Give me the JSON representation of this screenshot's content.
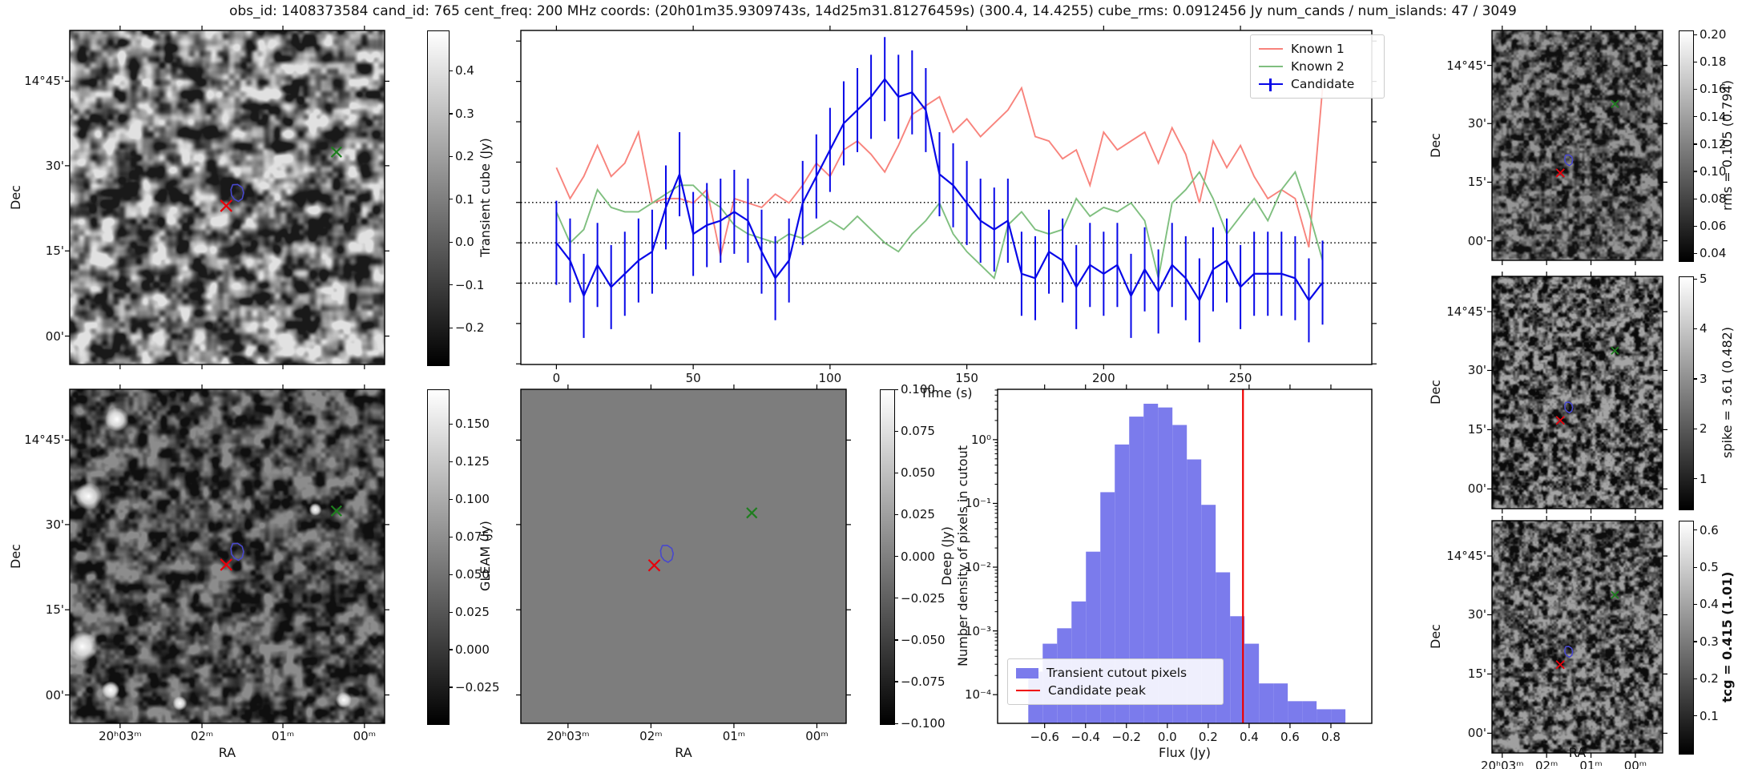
{
  "title": "obs_id: 1408373584 cand_id: 765 cent_freq: 200 MHz coords: (20h01m35.9309743s, 14d25m31.81276459s) (300.4, 14.4255) cube_rms: 0.0912456 Jy num_cands / num_islands: 47 / 3049",
  "colors": {
    "known1": "#f8837c",
    "known2": "#7fbf7f",
    "candidate": "#0707e8",
    "hist_bar": "#7b7bec",
    "candidate_peak_line": "#f00000",
    "marker_red": "#e8000b",
    "marker_green": "#1e7e1e",
    "contour_blue": "#4848cc",
    "dotted_line": "#000000"
  },
  "axes": {
    "dec_label": "Dec",
    "ra_label": "RA",
    "dec_ticks": [
      "14°45'",
      "30'",
      "15'",
      "00'"
    ],
    "ra_ticks": [
      "20ʰ03ᵐ",
      "02ᵐ",
      "01ᵐ",
      "00ᵐ"
    ]
  },
  "colorbars": {
    "transient": {
      "label": "Transient cube (Jy)",
      "vmin": -0.286,
      "vmax": 0.494,
      "ticks": [
        0.4,
        0.3,
        0.2,
        0.1,
        0.0,
        -0.1,
        -0.2
      ],
      "labels": [
        "0.4",
        "0.3",
        "0.2",
        "0.1",
        "0.0",
        "−0.1",
        "−0.2"
      ]
    },
    "gleam": {
      "label": "GLEAM (Jy)",
      "vmin": -0.049,
      "vmax": 0.173,
      "ticks": [
        0.15,
        0.125,
        0.1,
        0.075,
        0.05,
        0.025,
        0.0,
        -0.025
      ],
      "labels": [
        "0.150",
        "0.125",
        "0.100",
        "0.075",
        "0.050",
        "0.025",
        "0.000",
        "−0.025"
      ]
    },
    "deep": {
      "label": "Deep (Jy)",
      "vmin": -0.1,
      "vmax": 0.1,
      "ticks": [
        0.1,
        0.075,
        0.05,
        0.025,
        0.0,
        -0.025,
        -0.05,
        -0.075,
        -0.1
      ],
      "labels": [
        "0.100",
        "0.075",
        "0.050",
        "0.025",
        "0.000",
        "−0.025",
        "−0.050",
        "−0.075",
        "−0.100"
      ]
    },
    "rms": {
      "label": "rms = 0.105 (0.794)",
      "vmin": 0.035,
      "vmax": 0.203,
      "ticks": [
        0.2,
        0.18,
        0.16,
        0.14,
        0.12,
        0.1,
        0.08,
        0.06,
        0.04
      ],
      "labels": [
        "0.20",
        "0.18",
        "0.16",
        "0.14",
        "0.12",
        "0.10",
        "0.08",
        "0.06",
        "0.04"
      ]
    },
    "spike": {
      "label": "spike = 3.61 (0.482)",
      "vmin": 0.4,
      "vmax": 5.05,
      "ticks": [
        5,
        4,
        3,
        2,
        1
      ],
      "labels": [
        "5",
        "4",
        "3",
        "2",
        "1"
      ]
    },
    "tcg": {
      "label": "tcg = 0.415 (1.01)",
      "bold": true,
      "vmin": 0.0,
      "vmax": 0.625,
      "ticks": [
        0.6,
        0.5,
        0.4,
        0.3,
        0.2,
        0.1
      ],
      "labels": [
        "0.6",
        "0.5",
        "0.4",
        "0.3",
        "0.2",
        "0.1"
      ]
    }
  },
  "markers": {
    "left": {
      "red_x": [
        0.497,
        0.525
      ],
      "green_x": [
        0.847,
        0.364
      ],
      "contour": [
        0.53,
        0.487
      ]
    },
    "right": {
      "red_x": [
        0.4,
        0.62
      ],
      "green_x": [
        0.72,
        0.32
      ],
      "contour": [
        0.447,
        0.565
      ]
    },
    "deep": {
      "red_x": [
        0.41,
        0.527
      ],
      "green_x": [
        0.71,
        0.37
      ],
      "contour": [
        0.447,
        0.493
      ]
    }
  },
  "chart_data": [
    {
      "type": "line",
      "name": "lightcurve",
      "xlabel": "Time (s)",
      "ylabel": "",
      "xlim": [
        -13,
        298
      ],
      "ylim": [
        -0.275,
        0.48
      ],
      "xticks": [
        0,
        50,
        100,
        150,
        200,
        250
      ],
      "hlines_dotted": [
        0.0912,
        0.0,
        -0.0912
      ],
      "x_start": 0,
      "x_step": 5,
      "legend_position": "upper right",
      "series": [
        {
          "name": "Known 1",
          "values": [
            0.17,
            0.1,
            0.15,
            0.22,
            0.15,
            0.18,
            0.25,
            0.09,
            0.1,
            0.1,
            0.09,
            0.12,
            -0.03,
            0.1,
            0.09,
            0.08,
            0.11,
            0.09,
            0.13,
            0.18,
            0.15,
            0.21,
            0.23,
            0.2,
            0.16,
            0.22,
            0.29,
            0.31,
            0.33,
            0.25,
            0.28,
            0.24,
            0.27,
            0.3,
            0.35,
            0.24,
            0.23,
            0.19,
            0.21,
            0.13,
            0.25,
            0.21,
            0.23,
            0.25,
            0.18,
            0.26,
            0.2,
            0.09,
            0.23,
            0.17,
            0.22,
            0.15,
            0.1,
            0.12,
            0.1,
            -0.01,
            0.35
          ]
        },
        {
          "name": "Known 2",
          "values": [
            0.07,
            0.0,
            0.03,
            0.12,
            0.08,
            0.07,
            0.07,
            0.09,
            0.11,
            0.13,
            0.13,
            0.1,
            0.08,
            0.04,
            0.02,
            0.01,
            0.0,
            0.02,
            0.01,
            0.03,
            0.05,
            0.03,
            0.06,
            0.03,
            0.0,
            -0.02,
            0.02,
            0.05,
            0.09,
            0.02,
            -0.02,
            -0.05,
            -0.08,
            0.04,
            0.07,
            0.03,
            0.02,
            0.03,
            0.1,
            0.06,
            0.08,
            0.07,
            0.09,
            0.05,
            -0.08,
            0.09,
            0.12,
            0.16,
            0.1,
            0.02,
            0.06,
            0.1,
            0.05,
            0.12,
            0.16,
            0.07,
            -0.04
          ]
        },
        {
          "name": "Candidate",
          "yerr": 0.095,
          "values": [
            0.0,
            -0.04,
            -0.12,
            -0.05,
            -0.1,
            -0.07,
            -0.04,
            -0.02,
            0.08,
            0.155,
            0.02,
            0.04,
            0.05,
            0.07,
            0.05,
            -0.02,
            -0.08,
            -0.04,
            0.09,
            0.15,
            0.21,
            0.27,
            0.3,
            0.33,
            0.37,
            0.33,
            0.34,
            0.3,
            0.155,
            0.13,
            0.09,
            0.05,
            0.03,
            0.05,
            -0.07,
            -0.08,
            -0.02,
            -0.04,
            -0.1,
            -0.05,
            -0.07,
            -0.05,
            -0.12,
            -0.06,
            -0.11,
            -0.05,
            -0.08,
            -0.13,
            -0.06,
            -0.04,
            -0.1,
            -0.07,
            -0.07,
            -0.07,
            -0.08,
            -0.13,
            -0.09
          ]
        }
      ],
      "legend": [
        "Known 1",
        "Known 2",
        "Candidate"
      ]
    },
    {
      "type": "bar",
      "name": "flux-histogram",
      "xlabel": "Flux (Jy)",
      "ylabel": "Number density of pixels in cutout",
      "bins_start": -0.68,
      "bin_width": 0.0705,
      "densities": [
        0.00023,
        0.00063,
        0.0011,
        0.0029,
        0.0175,
        0.15,
        0.84,
        2.3,
        3.66,
        3.2,
        1.7,
        0.49,
        0.095,
        0.0083,
        0.0017,
        0.00063,
        0.00015,
        0.00015,
        7.9e-05,
        7.9e-05,
        5.9e-05,
        5.9e-05
      ],
      "candidate_peak_flux": 0.37,
      "xlim": [
        -0.83,
        1.0
      ],
      "ylim_log": [
        -4.45,
        0.79
      ],
      "xticks": [
        -0.6,
        -0.4,
        -0.2,
        0.0,
        0.2,
        0.4,
        0.6,
        0.8
      ],
      "xtick_labels": [
        "−0.6",
        "−0.4",
        "−0.2",
        "0.0",
        "0.2",
        "0.4",
        "0.6",
        "0.8"
      ],
      "ytick_labels": [
        "10⁰",
        "10⁻¹",
        "10⁻²",
        "10⁻³",
        "10⁻⁴"
      ],
      "legend": [
        "Transient cutout pixels",
        "Candidate peak"
      ]
    }
  ]
}
